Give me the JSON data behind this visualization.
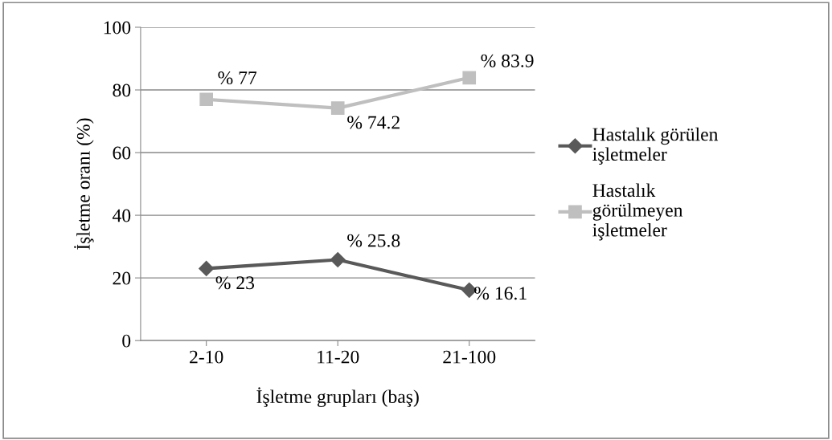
{
  "chart_data": {
    "type": "line",
    "xlabel": "İşletme grupları (baş)",
    "ylabel": "İşletme oranı (%)",
    "categories": [
      "2-10",
      "11-20",
      "21-100"
    ],
    "series": [
      {
        "name": "Hastalık görülen işletmeler",
        "color": "#595959",
        "marker": "diamond",
        "values": [
          23,
          25.8,
          16.1
        ],
        "value_labels": [
          "% 23",
          "% 25.8",
          "% 16.1"
        ]
      },
      {
        "name": "Hastalık görülmeyen işletmeler",
        "color": "#bfbfbf",
        "marker": "square",
        "values": [
          77,
          74.2,
          83.9
        ],
        "value_labels": [
          "% 77",
          "% 74.2",
          "% 83.9"
        ]
      }
    ],
    "ylim": [
      0,
      100
    ],
    "yticks": [
      0,
      20,
      40,
      60,
      80,
      100
    ],
    "grid": "y",
    "legend": "right",
    "line_style": "solid"
  }
}
